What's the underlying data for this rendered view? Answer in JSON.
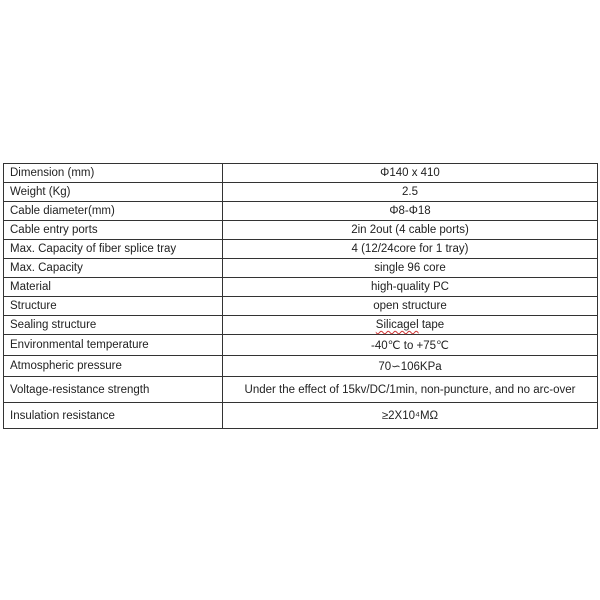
{
  "rows": [
    {
      "label": "Dimension (mm)",
      "value": "Φ140 x 410"
    },
    {
      "label": "Weight (Kg)",
      "value": "2.5"
    },
    {
      "label": "Cable diameter(mm)",
      "value": "Φ8-Φ18"
    },
    {
      "label": "Cable entry ports",
      "value": "2in 2out (4 cable ports)"
    },
    {
      "label": "Max. Capacity of fiber splice tray",
      "value": "4 (12/24core for 1 tray)"
    },
    {
      "label": "Max. Capacity",
      "value": "single 96 core"
    },
    {
      "label": "Material",
      "value": "high-quality PC"
    },
    {
      "label": "Structure",
      "value": "open structure"
    },
    {
      "label": "Sealing structure",
      "value": "Silicagel tape"
    },
    {
      "label": "Environmental temperature",
      "value": "-40℃ to +75℃"
    },
    {
      "label": "Atmospheric pressure",
      "value": "70∽106KPa"
    },
    {
      "label": "Voltage-resistance strength",
      "value": "Under the effect of 15kv/DC/1min, non-puncture, and no arc-over"
    },
    {
      "label": "Insulation resistance",
      "value": "≥2X10⁴MΩ"
    }
  ]
}
